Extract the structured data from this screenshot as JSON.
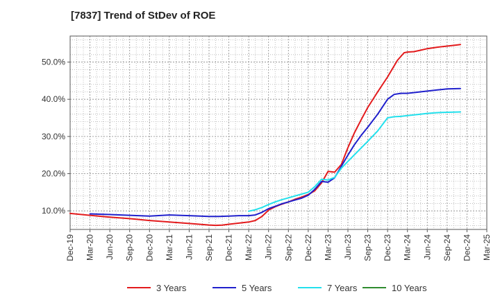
{
  "chart_data": {
    "type": "line",
    "title": "[7837]  Trend of StDev of ROE",
    "xlabel": "",
    "ylabel": "",
    "x_ticks": [
      "Dec-19",
      "Mar-20",
      "Jun-20",
      "Sep-20",
      "Dec-20",
      "Mar-21",
      "Jun-21",
      "Sep-21",
      "Dec-21",
      "Mar-22",
      "Jun-22",
      "Sep-22",
      "Dec-22",
      "Mar-23",
      "Jun-23",
      "Sep-23",
      "Dec-23",
      "Mar-24",
      "Jun-24",
      "Sep-24",
      "Dec-24",
      "Mar-25"
    ],
    "y_ticks": [
      "10.0%",
      "20.0%",
      "30.0%",
      "40.0%",
      "50.0%"
    ],
    "y_tick_values": [
      10,
      20,
      30,
      40,
      50
    ],
    "ylim": [
      5,
      57
    ],
    "grid": true,
    "legend_position": "bottom",
    "series": [
      {
        "name": "3 Years",
        "color": "#e31a1c",
        "points": [
          [
            0,
            9.3
          ],
          [
            1,
            8.8
          ],
          [
            2,
            8.3
          ],
          [
            3,
            7.9
          ],
          [
            4,
            7.4
          ],
          [
            5,
            7.0
          ],
          [
            6,
            6.6
          ],
          [
            7,
            6.2
          ],
          [
            7.33,
            6.1
          ],
          [
            7.67,
            6.15
          ],
          [
            8,
            6.4
          ],
          [
            8.5,
            6.7
          ],
          [
            9,
            7.0
          ],
          [
            9.33,
            7.4
          ],
          [
            9.67,
            8.5
          ],
          [
            10,
            10.2
          ],
          [
            10.33,
            11.1
          ],
          [
            10.67,
            11.8
          ],
          [
            11,
            12.4
          ],
          [
            11.33,
            13.1
          ],
          [
            11.67,
            13.7
          ],
          [
            12,
            14.4
          ],
          [
            12.33,
            15.4
          ],
          [
            12.67,
            17.5
          ],
          [
            13,
            20.6
          ],
          [
            13.33,
            20.4
          ],
          [
            13.67,
            22.5
          ],
          [
            14,
            27.0
          ],
          [
            14.33,
            31.0
          ],
          [
            14.67,
            34.5
          ],
          [
            15,
            37.8
          ],
          [
            15.5,
            42.0
          ],
          [
            16,
            46.0
          ],
          [
            16.5,
            50.5
          ],
          [
            16.83,
            52.5
          ],
          [
            17,
            52.7
          ],
          [
            17.33,
            52.8
          ],
          [
            17.67,
            53.2
          ],
          [
            18,
            53.6
          ],
          [
            18.5,
            54.0
          ],
          [
            19,
            54.3
          ],
          [
            19.5,
            54.6
          ],
          [
            19.67,
            54.7
          ]
        ]
      },
      {
        "name": "5 Years",
        "color": "#1f1fcc",
        "points": [
          [
            1,
            9.2
          ],
          [
            2,
            9.0
          ],
          [
            3,
            8.8
          ],
          [
            4,
            8.6
          ],
          [
            5,
            8.9
          ],
          [
            6,
            8.7
          ],
          [
            7,
            8.5
          ],
          [
            7.5,
            8.5
          ],
          [
            8,
            8.6
          ],
          [
            8.5,
            8.7
          ],
          [
            9,
            8.7
          ],
          [
            9.33,
            8.9
          ],
          [
            9.67,
            9.6
          ],
          [
            10,
            10.6
          ],
          [
            10.33,
            11.2
          ],
          [
            10.67,
            11.9
          ],
          [
            11,
            12.4
          ],
          [
            11.33,
            12.9
          ],
          [
            11.67,
            13.4
          ],
          [
            12,
            14.2
          ],
          [
            12.33,
            15.8
          ],
          [
            12.67,
            17.9
          ],
          [
            13,
            17.7
          ],
          [
            13.33,
            18.9
          ],
          [
            13.67,
            22.0
          ],
          [
            14,
            25.0
          ],
          [
            14.33,
            27.8
          ],
          [
            14.67,
            30.3
          ],
          [
            15,
            32.5
          ],
          [
            15.5,
            36.0
          ],
          [
            16,
            40.0
          ],
          [
            16.33,
            41.3
          ],
          [
            16.67,
            41.6
          ],
          [
            17,
            41.6
          ],
          [
            17.5,
            41.9
          ],
          [
            18,
            42.2
          ],
          [
            18.5,
            42.5
          ],
          [
            19,
            42.8
          ],
          [
            19.67,
            42.9
          ]
        ]
      },
      {
        "name": "7 Years",
        "color": "#22e0ec",
        "points": [
          [
            9,
            9.9
          ],
          [
            9.33,
            10.3
          ],
          [
            9.67,
            10.9
          ],
          [
            10,
            11.7
          ],
          [
            10.33,
            12.4
          ],
          [
            10.67,
            13.0
          ],
          [
            11,
            13.5
          ],
          [
            11.33,
            14.0
          ],
          [
            11.67,
            14.5
          ],
          [
            12,
            15.0
          ],
          [
            12.33,
            16.5
          ],
          [
            12.67,
            18.5
          ],
          [
            13,
            18.3
          ],
          [
            13.33,
            19.0
          ],
          [
            13.67,
            21.5
          ],
          [
            14,
            23.3
          ],
          [
            14.5,
            26.0
          ],
          [
            15,
            28.7
          ],
          [
            15.5,
            31.5
          ],
          [
            16,
            35.0
          ],
          [
            16.33,
            35.3
          ],
          [
            16.67,
            35.4
          ],
          [
            17,
            35.6
          ],
          [
            17.5,
            35.9
          ],
          [
            18,
            36.2
          ],
          [
            18.5,
            36.4
          ],
          [
            19,
            36.5
          ],
          [
            19.67,
            36.6
          ]
        ]
      },
      {
        "name": "10 Years",
        "color": "#2e8b2e",
        "points": []
      }
    ]
  }
}
